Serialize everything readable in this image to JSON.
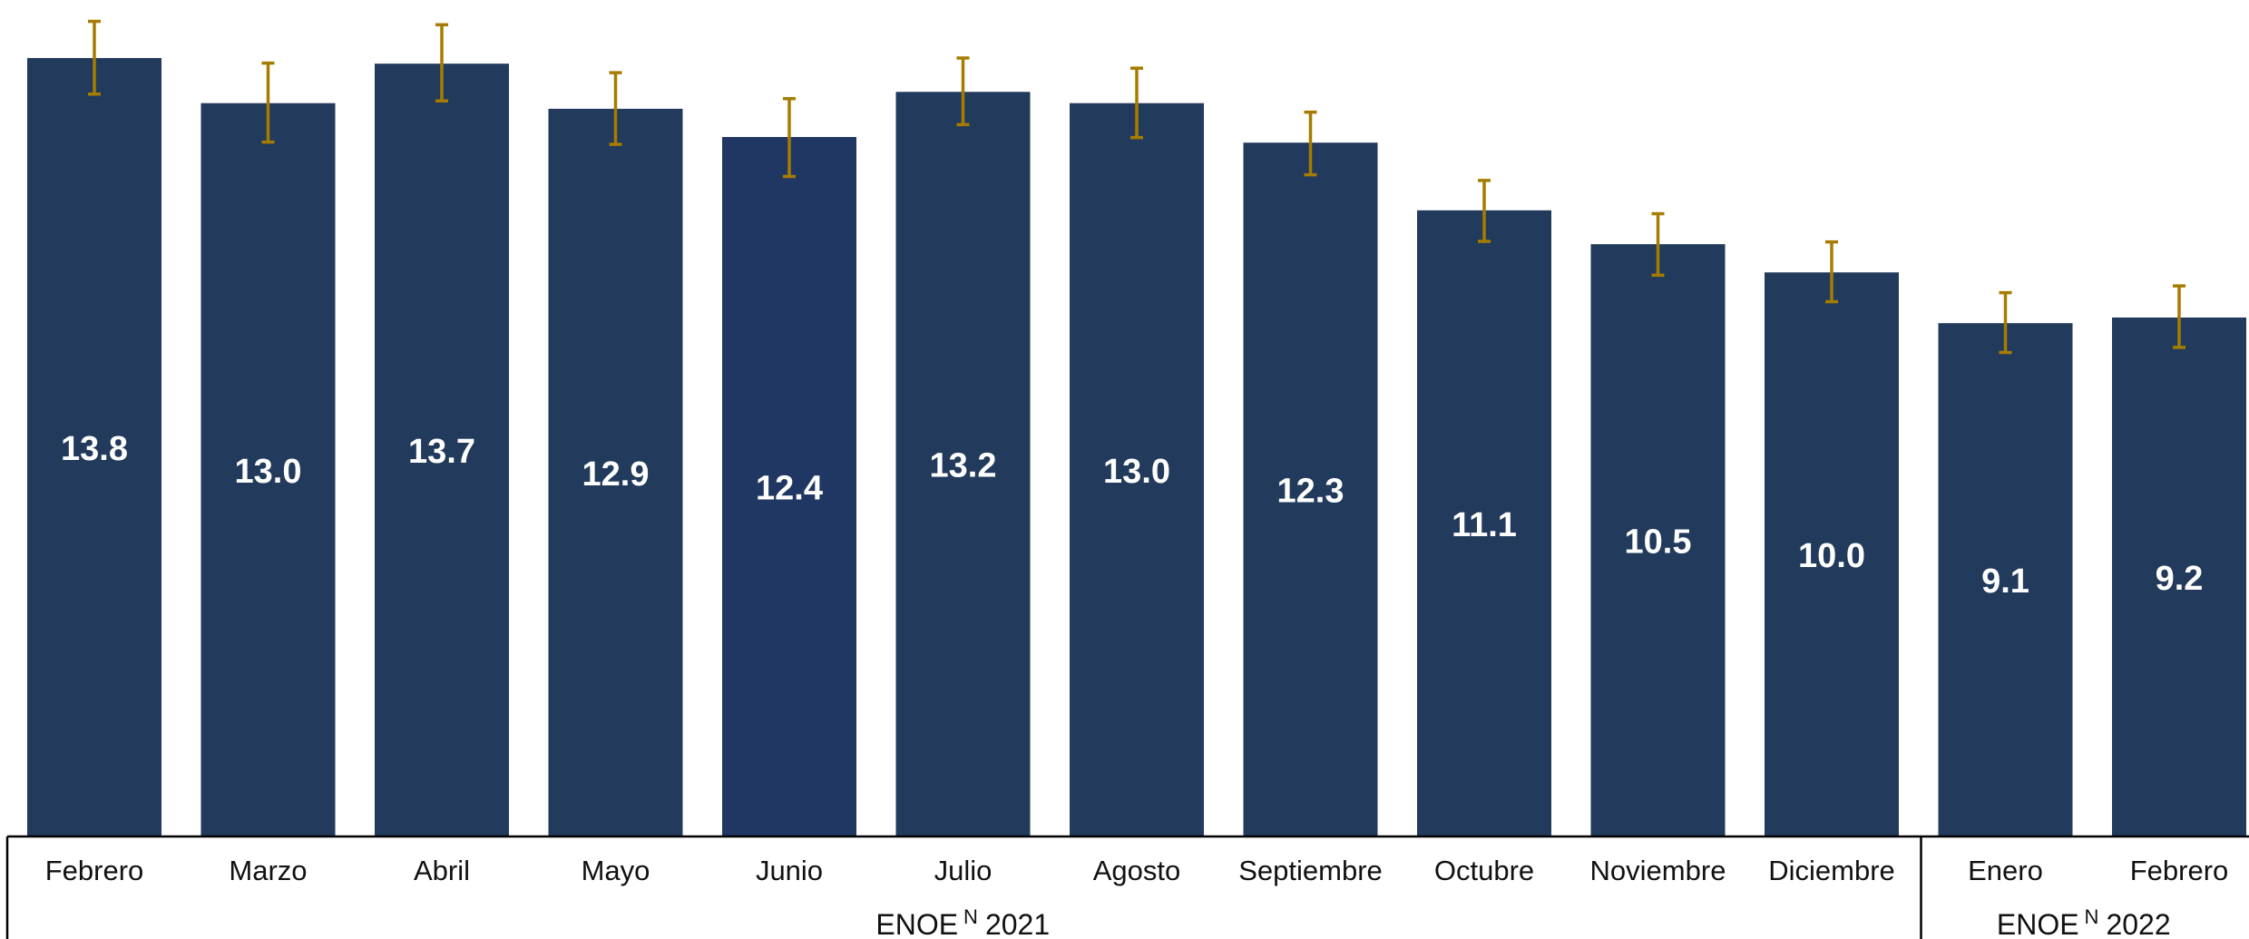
{
  "chart_data": {
    "type": "bar",
    "categories": [
      "Febrero",
      "Marzo",
      "Abril",
      "Mayo",
      "Junio",
      "Julio",
      "Agosto",
      "Septiembre",
      "Octubre",
      "Noviembre",
      "Diciembre",
      "Enero",
      "Febrero"
    ],
    "values": [
      13.8,
      13.0,
      13.7,
      12.9,
      12.4,
      13.2,
      13.0,
      12.3,
      11.1,
      10.5,
      10.0,
      9.1,
      9.2
    ],
    "data_labels": [
      "13.8",
      "13.0",
      "13.7",
      "12.9",
      "12.4",
      "13.2",
      "13.0",
      "12.3",
      "11.1",
      "10.5",
      "10.0",
      "9.1",
      "9.2"
    ],
    "error_bars": {
      "lower": [
        13.16,
        12.31,
        13.04,
        12.27,
        11.7,
        12.62,
        12.39,
        11.73,
        10.55,
        9.95,
        9.48,
        8.58,
        8.67
      ],
      "upper": [
        14.45,
        13.71,
        14.39,
        13.54,
        13.08,
        13.8,
        13.62,
        12.84,
        11.63,
        11.04,
        10.54,
        9.64,
        9.76
      ]
    },
    "groups": [
      {
        "label": "ENOE",
        "superscript": "N",
        "year": "2021",
        "count": 11
      },
      {
        "label": "ENOE",
        "superscript": "N",
        "year": "2022",
        "count": 2
      }
    ],
    "ylim": [
      0,
      14.7
    ],
    "grid": false,
    "colors": {
      "bar": "#223a5b",
      "bar_highlight": "#213763",
      "error_bar": "#a67c00",
      "axis": "#000000",
      "label_inside": "#ffffff"
    }
  }
}
